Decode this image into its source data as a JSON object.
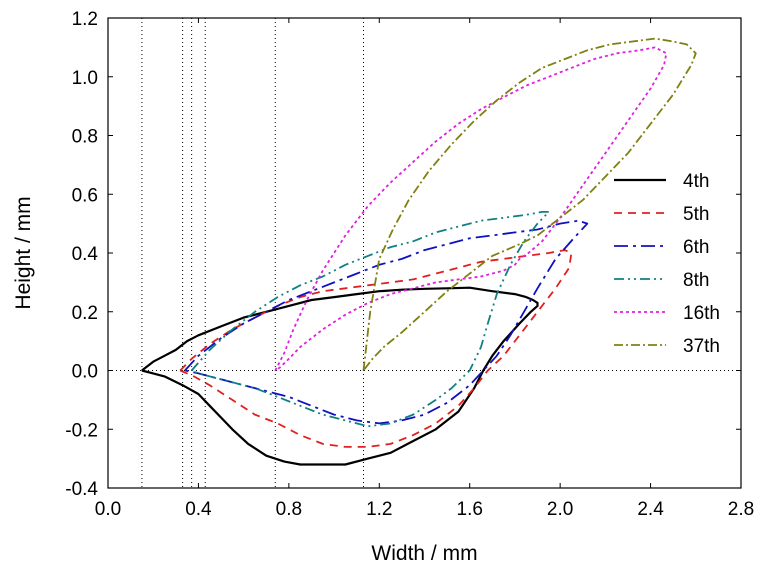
{
  "chart_data": {
    "type": "line",
    "xlabel": "Width / mm",
    "ylabel": "Height / mm",
    "xlim": [
      0.0,
      2.8
    ],
    "ylim": [
      -0.4,
      1.2
    ],
    "xticks": [
      "0.0",
      "0.4",
      "0.8",
      "1.2",
      "1.6",
      "2.0",
      "2.4",
      "2.8"
    ],
    "xtick_values": [
      0.0,
      0.4,
      0.8,
      1.2,
      1.6,
      2.0,
      2.4,
      2.8
    ],
    "yticks": [
      "-0.4",
      "-0.2",
      "0.0",
      "0.2",
      "0.4",
      "0.6",
      "0.8",
      "1.0",
      "1.2"
    ],
    "ytick_values": [
      -0.4,
      -0.2,
      0.0,
      0.2,
      0.4,
      0.6,
      0.8,
      1.0,
      1.2
    ],
    "grid": false,
    "legend_position": "right",
    "reference_lines": {
      "horizontal_y": 0.0,
      "vertical_x": [
        0.15,
        0.33,
        0.37,
        0.43,
        0.74,
        1.13
      ]
    },
    "series": [
      {
        "name": "4th",
        "color": "#000000",
        "dash": "solid",
        "x": [
          0.15,
          0.2,
          0.25,
          0.3,
          0.35,
          0.4,
          0.5,
          0.6,
          0.7,
          0.8,
          0.9,
          1.0,
          1.1,
          1.2,
          1.3,
          1.4,
          1.5,
          1.6,
          1.7,
          1.8,
          1.85,
          1.88,
          1.9,
          1.9,
          1.87,
          1.82,
          1.75,
          1.7,
          1.66,
          1.62,
          1.55,
          1.45,
          1.35,
          1.25,
          1.15,
          1.05,
          0.95,
          0.85,
          0.78,
          0.7,
          0.62,
          0.55,
          0.5,
          0.45,
          0.4,
          0.33,
          0.25,
          0.2,
          0.15
        ],
        "y": [
          0.0,
          0.03,
          0.05,
          0.07,
          0.1,
          0.12,
          0.15,
          0.18,
          0.2,
          0.22,
          0.24,
          0.25,
          0.26,
          0.27,
          0.275,
          0.278,
          0.28,
          0.282,
          0.27,
          0.26,
          0.25,
          0.24,
          0.23,
          0.22,
          0.2,
          0.16,
          0.1,
          0.05,
          0.0,
          -0.06,
          -0.14,
          -0.2,
          -0.24,
          -0.28,
          -0.3,
          -0.32,
          -0.32,
          -0.32,
          -0.31,
          -0.29,
          -0.25,
          -0.2,
          -0.16,
          -0.12,
          -0.08,
          -0.05,
          -0.02,
          -0.01,
          0.0
        ]
      },
      {
        "name": "5th",
        "color": "#e02020",
        "dash": "8,6",
        "x": [
          0.32,
          0.37,
          0.45,
          0.55,
          0.65,
          0.75,
          0.85,
          0.95,
          1.05,
          1.15,
          1.25,
          1.35,
          1.45,
          1.55,
          1.65,
          1.75,
          1.85,
          1.95,
          2.02,
          2.05,
          2.04,
          1.98,
          1.9,
          1.82,
          1.75,
          1.68,
          1.62,
          1.55,
          1.45,
          1.35,
          1.25,
          1.15,
          1.05,
          0.95,
          0.85,
          0.75,
          0.65,
          0.55,
          0.45,
          0.38,
          0.32
        ],
        "y": [
          0.0,
          0.04,
          0.09,
          0.14,
          0.18,
          0.22,
          0.25,
          0.27,
          0.28,
          0.29,
          0.3,
          0.31,
          0.33,
          0.35,
          0.37,
          0.38,
          0.39,
          0.4,
          0.41,
          0.4,
          0.35,
          0.28,
          0.2,
          0.12,
          0.05,
          0.0,
          -0.06,
          -0.12,
          -0.18,
          -0.22,
          -0.25,
          -0.26,
          -0.26,
          -0.25,
          -0.22,
          -0.18,
          -0.15,
          -0.1,
          -0.05,
          -0.02,
          0.0
        ]
      },
      {
        "name": "6th",
        "color": "#1010c0",
        "dash": "14,5,3,5",
        "x": [
          0.34,
          0.4,
          0.5,
          0.6,
          0.7,
          0.8,
          0.9,
          1.0,
          1.1,
          1.2,
          1.3,
          1.4,
          1.5,
          1.6,
          1.7,
          1.8,
          1.9,
          2.0,
          2.08,
          2.12,
          2.06,
          1.98,
          1.9,
          1.84,
          1.78,
          1.72,
          1.66,
          1.6,
          1.5,
          1.4,
          1.3,
          1.2,
          1.1,
          1.0,
          0.9,
          0.8,
          0.7,
          0.6,
          0.5,
          0.4,
          0.34
        ],
        "y": [
          0.0,
          0.05,
          0.11,
          0.16,
          0.2,
          0.24,
          0.27,
          0.3,
          0.33,
          0.36,
          0.38,
          0.41,
          0.43,
          0.45,
          0.46,
          0.47,
          0.48,
          0.5,
          0.51,
          0.5,
          0.45,
          0.38,
          0.28,
          0.2,
          0.12,
          0.05,
          0.0,
          -0.05,
          -0.11,
          -0.15,
          -0.17,
          -0.18,
          -0.17,
          -0.15,
          -0.12,
          -0.09,
          -0.07,
          -0.05,
          -0.03,
          -0.01,
          0.0
        ]
      },
      {
        "name": "8th",
        "color": "#108080",
        "dash": "10,4,2,4,2,4",
        "x": [
          0.37,
          0.45,
          0.55,
          0.65,
          0.75,
          0.85,
          0.95,
          1.05,
          1.15,
          1.25,
          1.35,
          1.45,
          1.55,
          1.65,
          1.75,
          1.85,
          1.92,
          1.95,
          1.9,
          1.84,
          1.78,
          1.72,
          1.68,
          1.65,
          1.6,
          1.52,
          1.45,
          1.35,
          1.25,
          1.15,
          1.05,
          0.95,
          0.85,
          0.75,
          0.65,
          0.55,
          0.45,
          0.4,
          0.37
        ],
        "y": [
          0.0,
          0.07,
          0.14,
          0.2,
          0.25,
          0.29,
          0.32,
          0.36,
          0.39,
          0.42,
          0.44,
          0.47,
          0.49,
          0.51,
          0.52,
          0.53,
          0.54,
          0.54,
          0.5,
          0.44,
          0.36,
          0.26,
          0.16,
          0.08,
          0.0,
          -0.06,
          -0.1,
          -0.15,
          -0.18,
          -0.19,
          -0.17,
          -0.15,
          -0.12,
          -0.09,
          -0.06,
          -0.04,
          -0.02,
          -0.01,
          0.0
        ]
      },
      {
        "name": "16th",
        "color": "#e020e0",
        "dash": "3,3",
        "x": [
          0.74,
          0.78,
          0.82,
          0.88,
          0.95,
          1.05,
          1.15,
          1.25,
          1.35,
          1.45,
          1.55,
          1.65,
          1.75,
          1.85,
          1.95,
          2.05,
          2.15,
          2.25,
          2.35,
          2.42,
          2.47,
          2.46,
          2.4,
          2.3,
          2.2,
          2.1,
          2.0,
          1.92,
          1.86,
          1.82,
          1.8,
          1.75,
          1.65,
          1.55,
          1.45,
          1.35,
          1.25,
          1.15,
          1.05,
          0.95,
          0.85,
          0.8,
          0.76,
          0.74
        ],
        "y": [
          0.0,
          0.06,
          0.14,
          0.24,
          0.34,
          0.46,
          0.56,
          0.64,
          0.71,
          0.78,
          0.84,
          0.89,
          0.93,
          0.97,
          1.0,
          1.03,
          1.06,
          1.08,
          1.09,
          1.1,
          1.08,
          1.04,
          0.96,
          0.85,
          0.74,
          0.63,
          0.52,
          0.44,
          0.4,
          0.38,
          0.36,
          0.34,
          0.32,
          0.31,
          0.3,
          0.28,
          0.26,
          0.23,
          0.19,
          0.14,
          0.08,
          0.04,
          0.01,
          0.0
        ]
      },
      {
        "name": "37th",
        "color": "#808010",
        "dash": "9,3,2,3",
        "x": [
          1.13,
          1.16,
          1.2,
          1.26,
          1.33,
          1.42,
          1.52,
          1.62,
          1.72,
          1.82,
          1.92,
          2.02,
          2.12,
          2.22,
          2.32,
          2.42,
          2.5,
          2.56,
          2.6,
          2.58,
          2.5,
          2.4,
          2.3,
          2.2,
          2.1,
          2.0,
          1.9,
          1.82,
          1.76,
          1.7,
          1.6,
          1.5,
          1.4,
          1.3,
          1.22,
          1.17,
          1.13
        ],
        "y": [
          0.0,
          0.2,
          0.38,
          0.48,
          0.58,
          0.68,
          0.77,
          0.85,
          0.92,
          0.98,
          1.03,
          1.06,
          1.09,
          1.11,
          1.12,
          1.13,
          1.12,
          1.11,
          1.08,
          1.04,
          0.94,
          0.84,
          0.74,
          0.66,
          0.58,
          0.52,
          0.46,
          0.43,
          0.41,
          0.39,
          0.33,
          0.27,
          0.2,
          0.13,
          0.08,
          0.04,
          0.0
        ]
      }
    ]
  }
}
